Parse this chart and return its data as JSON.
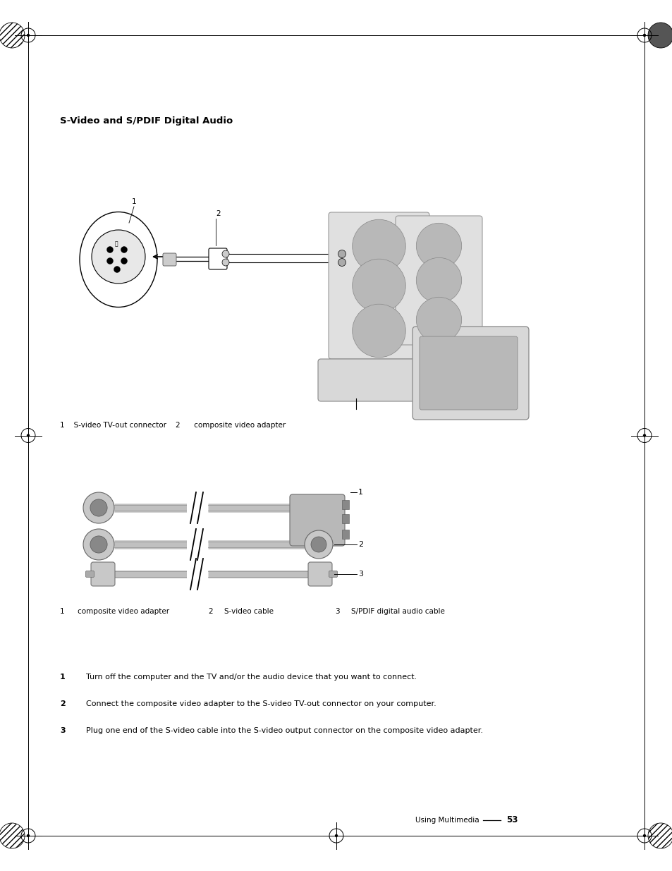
{
  "page_width": 9.54,
  "page_height": 12.35,
  "dpi": 100,
  "bg": "#ffffff",
  "title": "S-Video and S/PDIF Digital Audio",
  "caption1": "1    S-video TV-out connector    2      composite video adapter",
  "caption2_1": "1      composite video adapter",
  "caption2_2": "2      S-video cable",
  "caption2_3": "3      S/PDIF digital audio cable",
  "inst1_num": "1",
  "inst1_text": "Turn off the computer and the TV and/or the audio device that you want to connect.",
  "inst2_num": "2",
  "inst2_text": "Connect the composite video adapter to the S-video TV-out connector on your computer.",
  "inst3_num": "3",
  "inst3_text": "Plug one end of the S-video cable into the S-video output connector on the composite video adapter.",
  "footer_label": "Using Multimedia",
  "footer_page": "53"
}
